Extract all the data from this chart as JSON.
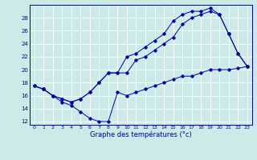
{
  "title": "",
  "xlabel": "Graphe des températures (°c)",
  "ylabel": "",
  "background_color": "#cceae7",
  "line_color": "#0000aa",
  "grid_color": "#ffffff",
  "ylim": [
    11.5,
    30.0
  ],
  "xlim": [
    -0.5,
    23.5
  ],
  "yticks": [
    12,
    14,
    16,
    18,
    20,
    22,
    24,
    26,
    28
  ],
  "xticks": [
    0,
    1,
    2,
    3,
    4,
    5,
    6,
    7,
    8,
    9,
    10,
    11,
    12,
    13,
    14,
    15,
    16,
    17,
    18,
    19,
    20,
    21,
    22,
    23
  ],
  "line1_x": [
    0,
    1,
    2,
    3,
    4,
    5,
    6,
    7,
    8,
    9,
    10,
    11,
    12,
    13,
    14,
    15,
    16,
    17,
    18,
    19,
    20,
    21,
    22,
    23
  ],
  "line1_y": [
    17.5,
    17.0,
    16.0,
    15.0,
    14.5,
    13.5,
    12.5,
    12.0,
    12.0,
    16.5,
    16.0,
    16.5,
    17.0,
    17.5,
    18.0,
    18.5,
    19.0,
    19.0,
    19.5,
    20.0,
    20.0,
    20.0,
    20.2,
    20.5
  ],
  "line2_x": [
    0,
    1,
    2,
    3,
    4,
    5,
    6,
    7,
    8,
    9,
    10,
    11,
    12,
    13,
    14,
    15,
    16,
    17,
    18,
    19,
    20,
    21,
    22,
    23
  ],
  "line2_y": [
    17.5,
    17.0,
    16.0,
    15.5,
    15.0,
    15.5,
    16.5,
    18.0,
    19.5,
    19.5,
    19.5,
    21.5,
    22.0,
    23.0,
    24.0,
    25.0,
    27.0,
    28.0,
    28.5,
    29.0,
    28.5,
    25.5,
    22.5,
    20.5
  ],
  "line3_x": [
    0,
    1,
    2,
    3,
    4,
    5,
    6,
    7,
    8,
    9,
    10,
    11,
    12,
    13,
    14,
    15,
    16,
    17,
    18,
    19,
    20,
    21,
    22,
    23
  ],
  "line3_y": [
    17.5,
    17.0,
    16.0,
    15.5,
    15.0,
    15.5,
    16.5,
    18.0,
    19.5,
    19.5,
    22.0,
    22.5,
    23.5,
    24.5,
    25.5,
    27.5,
    28.5,
    29.0,
    29.0,
    29.5,
    28.5,
    25.5,
    22.5,
    20.5
  ]
}
